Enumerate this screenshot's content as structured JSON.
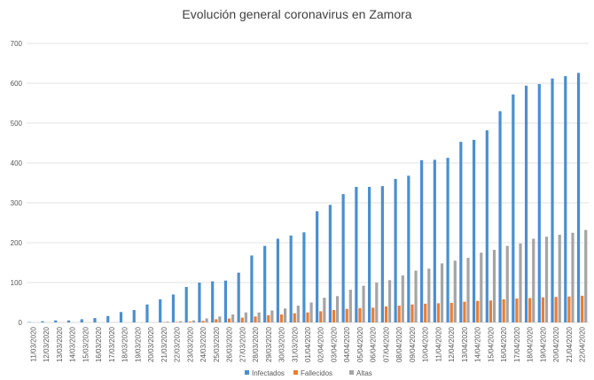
{
  "chart_data": {
    "type": "bar",
    "title": "Evolución general coronavirus en Zamora",
    "xlabel": "",
    "ylabel": "",
    "ylim": [
      0,
      700
    ],
    "yticks": [
      0,
      100,
      200,
      300,
      400,
      500,
      600,
      700
    ],
    "grid": true,
    "legend_position": "bottom",
    "categories": [
      "11/03/2020",
      "12/03/2020",
      "13/03/2020",
      "14/03/2020",
      "15/03/2020",
      "16/03/2020",
      "17/03/2020",
      "18/03/2020",
      "19/03/2020",
      "20/03/2020",
      "21/03/2020",
      "22/03/2020",
      "23/03/2020",
      "24/03/2020",
      "25/03/2020",
      "26/03/2020",
      "27/03/2020",
      "28/03/2020",
      "29/03/2020",
      "30/03/2020",
      "31/03/2020",
      "01/04/2020",
      "02/04/2020",
      "03/04/2020",
      "04/04/2020",
      "05/04/2020",
      "06/04/2020",
      "07/04/2020",
      "08/04/2020",
      "09/04/2020",
      "10/04/2020",
      "11/04/2020",
      "12/04/2020",
      "13/04/2020",
      "14/04/2020",
      "15/04/2020",
      "16/04/2020",
      "17/04/2020",
      "18/04/2020",
      "19/04/2020",
      "20/04/2020",
      "21/04/2020",
      "22/04/2020"
    ],
    "series": [
      {
        "name": "Infectados",
        "color": "#4a8fd2",
        "values": [
          1,
          3,
          5,
          5,
          8,
          11,
          16,
          26,
          31,
          45,
          58,
          70,
          89,
          100,
          103,
          105,
          125,
          168,
          192,
          210,
          218,
          226,
          279,
          295,
          322,
          340,
          340,
          342,
          360,
          368,
          407,
          408,
          413,
          453,
          458,
          482,
          530,
          572,
          594,
          598,
          612,
          618,
          626
        ]
      },
      {
        "name": "Fallecidos",
        "color": "#ed7d31",
        "values": [
          0,
          0,
          0,
          0,
          0,
          0,
          0,
          0,
          0,
          0,
          1,
          1,
          2,
          4,
          8,
          10,
          12,
          15,
          18,
          20,
          23,
          25,
          28,
          31,
          34,
          36,
          37,
          40,
          42,
          45,
          47,
          48,
          49,
          52,
          54,
          55,
          58,
          60,
          61,
          63,
          64,
          65,
          67
        ]
      },
      {
        "name": "Altas",
        "color": "#a5a5a5",
        "values": [
          0,
          0,
          0,
          0,
          0,
          0,
          0,
          0,
          0,
          0,
          2,
          3,
          5,
          10,
          15,
          20,
          25,
          25,
          30,
          35,
          42,
          50,
          62,
          66,
          82,
          92,
          100,
          106,
          118,
          130,
          135,
          148,
          155,
          162,
          175,
          182,
          192,
          198,
          210,
          215,
          220,
          225,
          232
        ]
      }
    ]
  }
}
